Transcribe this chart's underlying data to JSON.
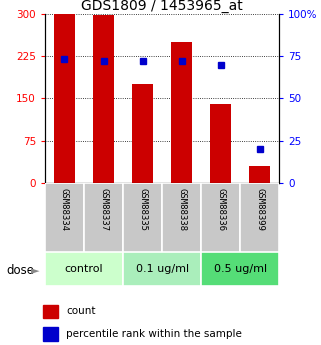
{
  "title": "GDS1809 / 1453965_at",
  "categories": [
    "GSM88334",
    "GSM88337",
    "GSM88335",
    "GSM88338",
    "GSM88336",
    "GSM88399"
  ],
  "bar_values": [
    300,
    297,
    175,
    250,
    140,
    30
  ],
  "percentile_values": [
    73,
    72,
    72,
    72,
    70,
    20
  ],
  "bar_color": "#cc0000",
  "percentile_color": "#0000cc",
  "left_ylim": [
    0,
    300
  ],
  "right_ylim": [
    0,
    100
  ],
  "left_yticks": [
    0,
    75,
    150,
    225,
    300
  ],
  "right_yticks": [
    0,
    25,
    50,
    75,
    100
  ],
  "right_yticklabels": [
    "0",
    "25",
    "50",
    "75",
    "100%"
  ],
  "groups": [
    {
      "label": "control",
      "indices": [
        0,
        1
      ],
      "color": "#ccffcc"
    },
    {
      "label": "0.1 ug/ml",
      "indices": [
        2,
        3
      ],
      "color": "#aaeebb"
    },
    {
      "label": "0.5 ug/ml",
      "indices": [
        4,
        5
      ],
      "color": "#55dd77"
    }
  ],
  "dose_label": "dose",
  "arrow": "►",
  "legend_count_label": "count",
  "legend_percentile_label": "percentile rank within the sample",
  "bar_width": 0.55,
  "background_color": "#ffffff",
  "tick_label_area_color": "#c8c8c8",
  "title_fontsize": 10,
  "tick_fontsize": 7.5,
  "cat_fontsize": 6.5,
  "group_fontsize": 8
}
